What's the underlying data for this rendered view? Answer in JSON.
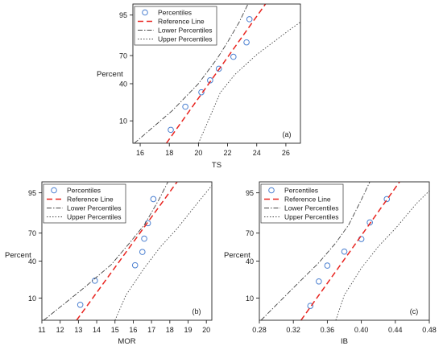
{
  "chart_data": [
    {
      "type": "scatter",
      "panel_label": "(a)",
      "xlabel": "TS",
      "ylabel": "Percent",
      "xlim": [
        15.5,
        27
      ],
      "xticks": [
        16,
        18,
        20,
        22,
        24,
        26
      ],
      "yticks": [
        10,
        40,
        70,
        95
      ],
      "ytick_positions": [
        -1.2816,
        -0.2533,
        0.5244,
        1.6449
      ],
      "ylim_z": [
        -1.9,
        1.95
      ],
      "grid": false,
      "legend": {
        "placement": "top-left",
        "entries": [
          "Percentiles",
          "Reference Line",
          "Lower Percentiles",
          "Upper Percentiles"
        ]
      },
      "series": [
        {
          "name": "Percentiles",
          "kind": "points",
          "color": "#4a7fd0",
          "x": [
            18.1,
            19.1,
            20.2,
            20.8,
            21.4,
            22.4,
            23.3,
            23.5
          ],
          "z": [
            -1.53,
            -0.89,
            -0.49,
            -0.16,
            0.16,
            0.49,
            0.89,
            1.53
          ]
        },
        {
          "name": "Reference Line",
          "kind": "line",
          "color": "#e8231e",
          "dash": "7,4",
          "x": [
            17.8,
            24.6
          ],
          "z": [
            -1.9,
            1.95
          ]
        },
        {
          "name": "Lower Percentiles",
          "kind": "line",
          "color": "#444444",
          "dash": "6,2,1.5,2",
          "x": [
            15.6,
            18.2,
            20.0,
            21.3,
            22.0,
            22.8,
            23.4
          ],
          "z": [
            -1.9,
            -1.0,
            -0.25,
            0.45,
            0.9,
            1.45,
            1.95
          ]
        },
        {
          "name": "Upper Percentiles",
          "kind": "line",
          "color": "#444444",
          "dash": "1.5,2",
          "x": [
            20.0,
            20.7,
            21.5,
            22.5,
            24.0,
            26.3,
            27.0
          ],
          "z": [
            -1.9,
            -1.25,
            -0.5,
            0.0,
            0.55,
            1.25,
            1.45
          ]
        }
      ]
    },
    {
      "type": "scatter",
      "panel_label": "(b)",
      "xlabel": "MOR",
      "ylabel": "Percent",
      "xlim": [
        11,
        20.3
      ],
      "xticks": [
        11,
        12,
        13,
        14,
        15,
        16,
        17,
        18,
        19,
        20
      ],
      "yticks": [
        10,
        40,
        70,
        95
      ],
      "ytick_positions": [
        -1.2816,
        -0.2533,
        0.5244,
        1.6449
      ],
      "ylim_z": [
        -1.9,
        1.95
      ],
      "grid": false,
      "legend": {
        "placement": "top-left",
        "entries": [
          "Percentiles",
          "Reference Line",
          "Lower Percentiles",
          "Upper Percentiles"
        ]
      },
      "series": [
        {
          "name": "Percentiles",
          "kind": "points",
          "color": "#4a7fd0",
          "x": [
            13.1,
            13.9,
            16.1,
            16.5,
            16.6,
            16.8,
            17.1
          ],
          "z": [
            -1.47,
            -0.8,
            -0.37,
            0.0,
            0.37,
            0.8,
            1.47
          ]
        },
        {
          "name": "Reference Line",
          "kind": "line",
          "color": "#e8231e",
          "dash": "7,4",
          "x": [
            12.9,
            18.4
          ],
          "z": [
            -1.9,
            1.95
          ]
        },
        {
          "name": "Lower Percentiles",
          "kind": "line",
          "color": "#444444",
          "dash": "6,2,1.5,2",
          "x": [
            11.1,
            13.3,
            14.8,
            15.8,
            16.6,
            17.4,
            17.9
          ],
          "z": [
            -1.9,
            -1.0,
            -0.35,
            0.25,
            0.75,
            1.45,
            1.95
          ]
        },
        {
          "name": "Upper Percentiles",
          "kind": "line",
          "color": "#444444",
          "dash": "1.5,2",
          "x": [
            15.0,
            15.6,
            16.6,
            17.5,
            18.4,
            19.5,
            20.3
          ],
          "z": [
            -1.9,
            -1.2,
            -0.45,
            0.15,
            0.65,
            1.35,
            1.85
          ]
        }
      ]
    },
    {
      "type": "scatter",
      "panel_label": "(c)",
      "xlabel": "IB",
      "ylabel": "Percent",
      "xlim": [
        0.28,
        0.48
      ],
      "xticks": [
        0.28,
        0.32,
        0.36,
        0.4,
        0.44,
        0.48
      ],
      "xtick_labels": [
        "0.28",
        "0.32",
        "0.36",
        "0.40",
        "0.44",
        "0.48"
      ],
      "yticks": [
        10,
        40,
        70,
        95
      ],
      "ytick_positions": [
        -1.2816,
        -0.2533,
        0.5244,
        1.6449
      ],
      "ylim_z": [
        -1.9,
        1.95
      ],
      "grid": false,
      "legend": {
        "placement": "top-left",
        "entries": [
          "Percentiles",
          "Reference Line",
          "Lower Percentiles",
          "Upper Percentiles"
        ]
      },
      "series": [
        {
          "name": "Percentiles",
          "kind": "points",
          "color": "#4a7fd0",
          "x": [
            0.34,
            0.35,
            0.36,
            0.38,
            0.4,
            0.41,
            0.43
          ],
          "z": [
            -1.5,
            -0.82,
            -0.38,
            0.01,
            0.36,
            0.82,
            1.47
          ]
        },
        {
          "name": "Reference Line",
          "kind": "line",
          "color": "#e8231e",
          "dash": "7,4",
          "x": [
            0.329,
            0.445
          ],
          "z": [
            -1.9,
            1.95
          ]
        },
        {
          "name": "Lower Percentiles",
          "kind": "line",
          "color": "#444444",
          "dash": "6,2,1.5,2",
          "x": [
            0.282,
            0.32,
            0.35,
            0.37,
            0.385,
            0.4,
            0.41
          ],
          "z": [
            -1.9,
            -1.0,
            -0.3,
            0.25,
            0.75,
            1.45,
            1.95
          ]
        },
        {
          "name": "Upper Percentiles",
          "kind": "line",
          "color": "#444444",
          "dash": "1.5,2",
          "x": [
            0.37,
            0.38,
            0.4,
            0.42,
            0.44,
            0.465,
            0.48
          ],
          "z": [
            -1.9,
            -1.2,
            -0.45,
            0.15,
            0.65,
            1.35,
            1.7
          ]
        }
      ]
    }
  ]
}
